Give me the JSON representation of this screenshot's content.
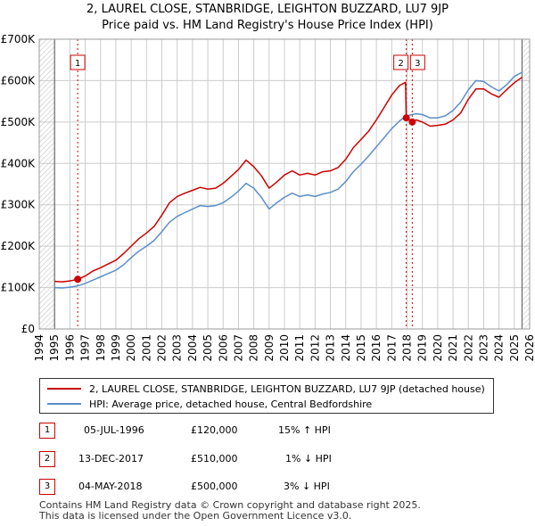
{
  "title_line1": "2, LAUREL CLOSE, STANBRIDGE, LEIGHTON BUZZARD, LU7 9JP",
  "title_line2": "Price paid vs. HM Land Registry's House Price Index (HPI)",
  "colors": {
    "property": "#cc0000",
    "hpi": "#5b8ec9",
    "grid": "#cccccc",
    "hatch": "#999999"
  },
  "chart_data": {
    "type": "line",
    "x_ticks": [
      "1994",
      "1995",
      "1996",
      "1997",
      "1998",
      "1999",
      "2000",
      "2001",
      "2002",
      "2003",
      "2004",
      "2005",
      "2006",
      "2007",
      "2008",
      "2009",
      "2010",
      "2011",
      "2012",
      "2013",
      "2014",
      "2015",
      "2016",
      "2017",
      "2018",
      "2019",
      "2020",
      "2021",
      "2022",
      "2023",
      "2024",
      "2025",
      "2026"
    ],
    "y_ticks": [
      "£0",
      "£100K",
      "£200K",
      "£300K",
      "£400K",
      "£500K",
      "£600K",
      "£700K"
    ],
    "y_tick_values": [
      0,
      100000,
      200000,
      300000,
      400000,
      500000,
      600000,
      700000
    ],
    "xlim": [
      1994,
      2026
    ],
    "ylim": [
      0,
      700000
    ],
    "data_start": 1995.0,
    "data_end": 2025.5,
    "series": [
      {
        "name": "2, LAUREL CLOSE, STANBRIDGE, LEIGHTON BUZZARD, LU7 9JP (detached house)",
        "color": "#cc0000",
        "points": [
          [
            1995.0,
            115000
          ],
          [
            1995.5,
            114000
          ],
          [
            1996.0,
            116000
          ],
          [
            1996.51,
            120000
          ],
          [
            1997.0,
            128000
          ],
          [
            1997.5,
            140000
          ],
          [
            1998.0,
            148000
          ],
          [
            1998.5,
            157000
          ],
          [
            1999.0,
            166000
          ],
          [
            1999.5,
            182000
          ],
          [
            2000.0,
            200000
          ],
          [
            2000.5,
            218000
          ],
          [
            2001.0,
            232000
          ],
          [
            2001.5,
            248000
          ],
          [
            2002.0,
            275000
          ],
          [
            2002.5,
            305000
          ],
          [
            2003.0,
            320000
          ],
          [
            2003.5,
            328000
          ],
          [
            2004.0,
            335000
          ],
          [
            2004.5,
            342000
          ],
          [
            2005.0,
            338000
          ],
          [
            2005.5,
            340000
          ],
          [
            2006.0,
            352000
          ],
          [
            2006.5,
            368000
          ],
          [
            2007.0,
            385000
          ],
          [
            2007.5,
            408000
          ],
          [
            2008.0,
            392000
          ],
          [
            2008.5,
            370000
          ],
          [
            2009.0,
            340000
          ],
          [
            2009.5,
            355000
          ],
          [
            2010.0,
            372000
          ],
          [
            2010.5,
            382000
          ],
          [
            2011.0,
            372000
          ],
          [
            2011.5,
            376000
          ],
          [
            2012.0,
            372000
          ],
          [
            2012.5,
            380000
          ],
          [
            2013.0,
            382000
          ],
          [
            2013.5,
            390000
          ],
          [
            2014.0,
            410000
          ],
          [
            2014.5,
            438000
          ],
          [
            2015.0,
            458000
          ],
          [
            2015.5,
            478000
          ],
          [
            2016.0,
            505000
          ],
          [
            2016.5,
            535000
          ],
          [
            2017.0,
            565000
          ],
          [
            2017.5,
            588000
          ],
          [
            2017.9,
            596000
          ],
          [
            2017.95,
            510000
          ],
          [
            2018.34,
            500000
          ],
          [
            2018.6,
            505000
          ],
          [
            2019.0,
            500000
          ],
          [
            2019.5,
            490000
          ],
          [
            2020.0,
            492000
          ],
          [
            2020.5,
            495000
          ],
          [
            2021.0,
            505000
          ],
          [
            2021.5,
            522000
          ],
          [
            2022.0,
            555000
          ],
          [
            2022.5,
            580000
          ],
          [
            2023.0,
            580000
          ],
          [
            2023.5,
            568000
          ],
          [
            2024.0,
            560000
          ],
          [
            2024.5,
            578000
          ],
          [
            2025.0,
            595000
          ],
          [
            2025.5,
            608000
          ]
        ]
      },
      {
        "name": "HPI: Average price, detached house, Central Bedfordshire",
        "color": "#5b8ec9",
        "points": [
          [
            1995.0,
            100000
          ],
          [
            1995.5,
            99000
          ],
          [
            1996.0,
            101000
          ],
          [
            1996.51,
            104000
          ],
          [
            1997.0,
            110000
          ],
          [
            1997.5,
            118000
          ],
          [
            1998.0,
            126000
          ],
          [
            1998.5,
            134000
          ],
          [
            1999.0,
            142000
          ],
          [
            1999.5,
            155000
          ],
          [
            2000.0,
            172000
          ],
          [
            2000.5,
            188000
          ],
          [
            2001.0,
            200000
          ],
          [
            2001.5,
            214000
          ],
          [
            2002.0,
            235000
          ],
          [
            2002.5,
            258000
          ],
          [
            2003.0,
            272000
          ],
          [
            2003.5,
            281000
          ],
          [
            2004.0,
            290000
          ],
          [
            2004.5,
            298000
          ],
          [
            2005.0,
            296000
          ],
          [
            2005.5,
            298000
          ],
          [
            2006.0,
            305000
          ],
          [
            2006.5,
            318000
          ],
          [
            2007.0,
            333000
          ],
          [
            2007.5,
            352000
          ],
          [
            2008.0,
            340000
          ],
          [
            2008.5,
            318000
          ],
          [
            2009.0,
            290000
          ],
          [
            2009.5,
            305000
          ],
          [
            2010.0,
            318000
          ],
          [
            2010.5,
            328000
          ],
          [
            2011.0,
            320000
          ],
          [
            2011.5,
            324000
          ],
          [
            2012.0,
            320000
          ],
          [
            2012.5,
            326000
          ],
          [
            2013.0,
            330000
          ],
          [
            2013.5,
            338000
          ],
          [
            2014.0,
            356000
          ],
          [
            2014.5,
            380000
          ],
          [
            2015.0,
            398000
          ],
          [
            2015.5,
            418000
          ],
          [
            2016.0,
            440000
          ],
          [
            2016.5,
            462000
          ],
          [
            2017.0,
            484000
          ],
          [
            2017.5,
            502000
          ],
          [
            2017.95,
            515000
          ],
          [
            2018.34,
            518000
          ],
          [
            2018.6,
            520000
          ],
          [
            2019.0,
            518000
          ],
          [
            2019.5,
            510000
          ],
          [
            2020.0,
            510000
          ],
          [
            2020.5,
            515000
          ],
          [
            2021.0,
            528000
          ],
          [
            2021.5,
            548000
          ],
          [
            2022.0,
            578000
          ],
          [
            2022.5,
            600000
          ],
          [
            2023.0,
            598000
          ],
          [
            2023.5,
            585000
          ],
          [
            2024.0,
            575000
          ],
          [
            2024.5,
            590000
          ],
          [
            2025.0,
            610000
          ],
          [
            2025.5,
            620000
          ]
        ]
      }
    ],
    "markers": [
      {
        "label": "1",
        "date": 1996.51,
        "price": 120000
      },
      {
        "label": "2",
        "date": 2017.95,
        "price": 510000
      },
      {
        "label": "3",
        "date": 2018.34,
        "price": 500000
      }
    ]
  },
  "legend": {
    "property_label": "2, LAUREL CLOSE, STANBRIDGE, LEIGHTON BUZZARD, LU7 9JP (detached house)",
    "hpi_label": "HPI: Average price, detached house, Central Bedfordshire"
  },
  "transactions": [
    {
      "num": "1",
      "date": "05-JUL-1996",
      "price": "£120,000",
      "hpi": "15% ↑ HPI"
    },
    {
      "num": "2",
      "date": "13-DEC-2017",
      "price": "£510,000",
      "hpi": "1% ↓ HPI"
    },
    {
      "num": "3",
      "date": "04-MAY-2018",
      "price": "£500,000",
      "hpi": "3% ↓ HPI"
    }
  ],
  "footer": {
    "line1": "Contains HM Land Registry data © Crown copyright and database right 2025.",
    "line2": "This data is licensed under the Open Government Licence v3.0."
  }
}
